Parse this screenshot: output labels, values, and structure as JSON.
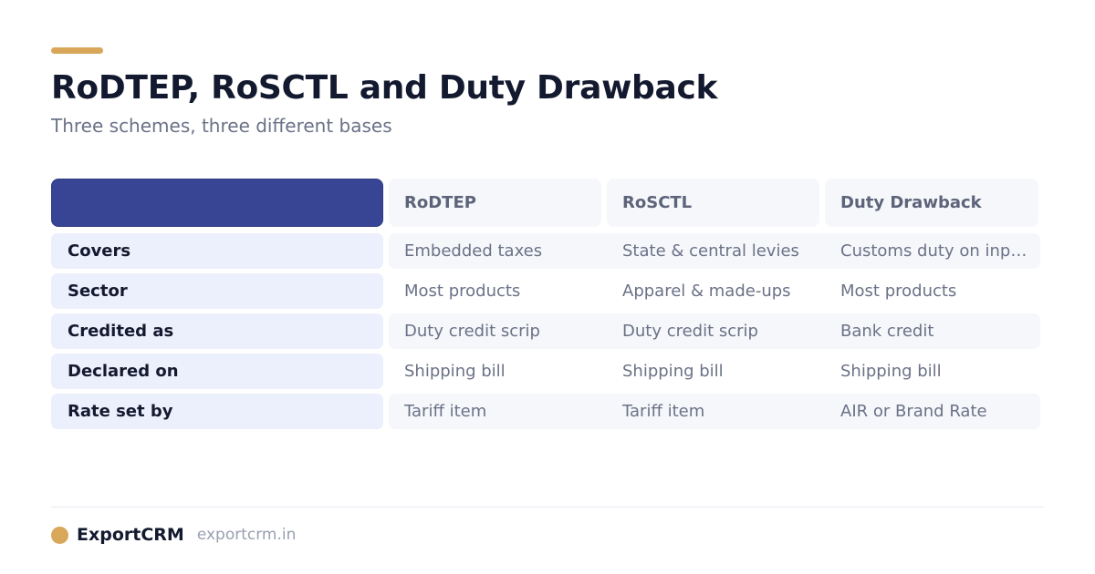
{
  "header": {
    "title": "RoDTEP, RoSCTL and Duty Drawback",
    "subtitle": "Three schemes, three different bases"
  },
  "table": {
    "columns": [
      "",
      "RoDTEP",
      "RoSCTL",
      "Duty Drawback"
    ],
    "rows": [
      {
        "label": "Covers",
        "values": [
          "Embedded taxes",
          "State & central levies",
          "Customs duty on inputs"
        ]
      },
      {
        "label": "Sector",
        "values": [
          "Most products",
          "Apparel & made-ups",
          "Most products"
        ]
      },
      {
        "label": "Credited as",
        "values": [
          "Duty credit scrip",
          "Duty credit scrip",
          "Bank credit"
        ]
      },
      {
        "label": "Declared on",
        "values": [
          "Shipping bill",
          "Shipping bill",
          "Shipping bill"
        ]
      },
      {
        "label": "Rate set by",
        "values": [
          "Tariff item",
          "Tariff item",
          "AIR or Brand Rate"
        ]
      }
    ]
  },
  "footer": {
    "brand": "ExportCRM",
    "site": "exportcrm.in"
  },
  "colors": {
    "accent": "#d9a75a",
    "header_cell": "#384594",
    "label_cell": "#eceffc"
  }
}
